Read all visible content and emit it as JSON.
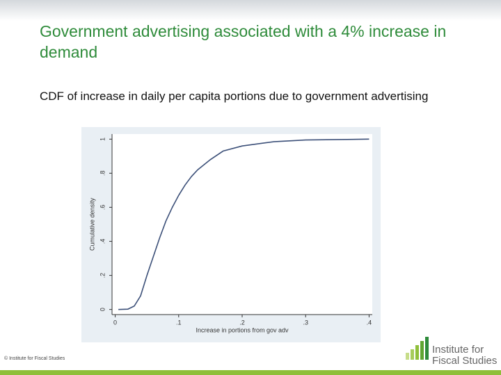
{
  "title": "Government advertising associated with a 4% increase in demand",
  "subtitle": "CDF of increase in daily per capita portions due to government advertising",
  "footer": "© Institute for Fiscal Studies",
  "logo": [
    "Institute for",
    "Fiscal Studies"
  ],
  "chart_data": {
    "type": "line",
    "x": [
      0.005,
      0.02,
      0.03,
      0.04,
      0.05,
      0.06,
      0.07,
      0.08,
      0.09,
      0.1,
      0.11,
      0.12,
      0.13,
      0.15,
      0.17,
      0.2,
      0.25,
      0.3,
      0.4
    ],
    "series": [
      {
        "name": "CDF",
        "color": "#3b4f78",
        "values": [
          0,
          0.002,
          0.02,
          0.08,
          0.2,
          0.31,
          0.42,
          0.52,
          0.6,
          0.67,
          0.73,
          0.78,
          0.82,
          0.88,
          0.93,
          0.96,
          0.985,
          0.995,
          1
        ]
      }
    ],
    "xlabel": "Increase in portions from gov adv",
    "ylabel": "Cumulative density",
    "xlim": [
      -0.005,
      0.405
    ],
    "ylim": [
      -0.03,
      1.03
    ],
    "xticks": [
      0,
      {
        "value": 0.1,
        "label": ".1"
      },
      {
        "value": 0.2,
        "label": ".2"
      },
      {
        "value": 0.3,
        "label": ".3"
      },
      {
        "value": 0.4,
        "label": ".4"
      }
    ],
    "yticks": [
      0,
      {
        "value": 0.2,
        "label": ".2"
      },
      {
        "value": 0.4,
        "label": ".4"
      },
      {
        "value": 0.6,
        "label": ".6"
      },
      {
        "value": 0.8,
        "label": ".8"
      },
      1
    ]
  }
}
